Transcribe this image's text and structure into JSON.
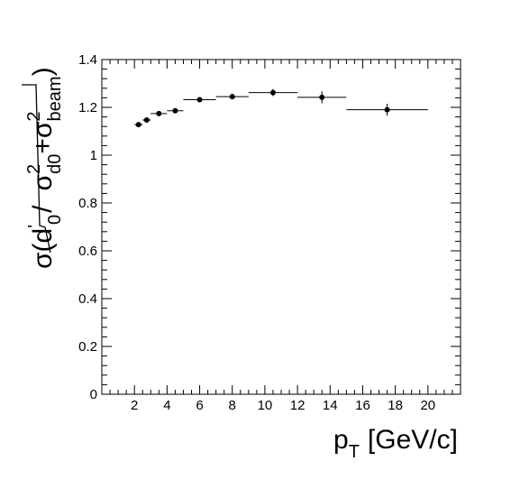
{
  "chart_data": {
    "type": "scatter",
    "title": "",
    "xlabel": "p",
    "xlabel_sub": "T",
    "xlabel_unit": "[GeV/c]",
    "ylabel": {
      "prefix": "σ(d",
      "prime": "'",
      "sub0": "0",
      "slash": "/",
      "sigma1": "σ",
      "sup1": "2",
      "sub1": "d0",
      "plus": "+",
      "sigma2": "σ",
      "sup2": "2",
      "sub2": "beam",
      "close": ")"
    },
    "xlim": [
      0,
      22
    ],
    "ylim": [
      0,
      1.4
    ],
    "xticks": [
      "2",
      "4",
      "6",
      "8",
      "10",
      "12",
      "14",
      "16",
      "18",
      "20"
    ],
    "yticks": [
      "0",
      "0.2",
      "0.4",
      "0.6",
      "0.8",
      "1",
      "1.2",
      "1.4"
    ],
    "grid": false,
    "legend": "none",
    "marker_color": "#000000",
    "points": [
      {
        "x": 2.25,
        "y": 1.128,
        "xerr": 0.25,
        "yerr": 0.006
      },
      {
        "x": 2.75,
        "y": 1.147,
        "xerr": 0.25,
        "yerr": 0.007
      },
      {
        "x": 3.5,
        "y": 1.174,
        "xerr": 0.5,
        "yerr": 0.008
      },
      {
        "x": 4.5,
        "y": 1.186,
        "xerr": 0.5,
        "yerr": 0.008
      },
      {
        "x": 6.0,
        "y": 1.232,
        "xerr": 1.0,
        "yerr": 0.009
      },
      {
        "x": 8.0,
        "y": 1.245,
        "xerr": 1.0,
        "yerr": 0.012
      },
      {
        "x": 10.5,
        "y": 1.262,
        "xerr": 1.5,
        "yerr": 0.015
      },
      {
        "x": 13.5,
        "y": 1.242,
        "xerr": 1.5,
        "yerr": 0.025
      },
      {
        "x": 17.5,
        "y": 1.19,
        "xerr": 2.5,
        "yerr": 0.025
      }
    ]
  }
}
